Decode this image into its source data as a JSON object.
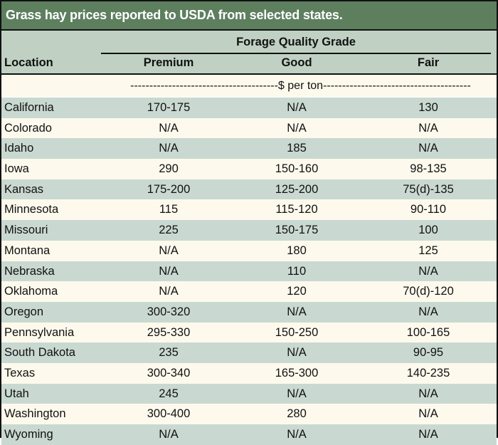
{
  "title": "Grass hay prices reported to USDA from selected states.",
  "header": {
    "group_label": "Forage Quality Grade",
    "columns": [
      "Location",
      "Premium",
      "Good",
      "Fair"
    ],
    "units": "---------------------------------------$ per ton---------------------------------------"
  },
  "rows": [
    [
      "California",
      "170-175",
      "N/A",
      "130"
    ],
    [
      "Colorado",
      "N/A",
      "N/A",
      "N/A"
    ],
    [
      "Idaho",
      "N/A",
      "185",
      "N/A"
    ],
    [
      "Iowa",
      "290",
      "150-160",
      "98-135"
    ],
    [
      "Kansas",
      "175-200",
      "125-200",
      "75(d)-135"
    ],
    [
      "Minnesota",
      "115",
      "115-120",
      "90-110"
    ],
    [
      "Missouri",
      "225",
      "150-175",
      "100"
    ],
    [
      "Montana",
      "N/A",
      "180",
      "125"
    ],
    [
      "Nebraska",
      "N/A",
      "110",
      "N/A"
    ],
    [
      "Oklahoma",
      "N/A",
      "120",
      "70(d)-120"
    ],
    [
      "Oregon",
      "300-320",
      "N/A",
      "N/A"
    ],
    [
      "Pennsylvania",
      "295-330",
      "150-250",
      "100-165"
    ],
    [
      "South Dakota",
      "235",
      "N/A",
      "90-95"
    ],
    [
      "Texas",
      "300-340",
      "165-300",
      "140-235"
    ],
    [
      "Utah",
      "245",
      "N/A",
      "N/A"
    ],
    [
      "Washington",
      "300-400",
      "280",
      "N/A"
    ],
    [
      "Wyoming",
      "N/A",
      "N/A",
      "N/A"
    ]
  ],
  "colors": {
    "title_bg": "#5d7f5e",
    "header_bg": "#c0d1c3",
    "row_alt_bg": "#c9d9d1",
    "row_bg": "#fdfaed"
  }
}
